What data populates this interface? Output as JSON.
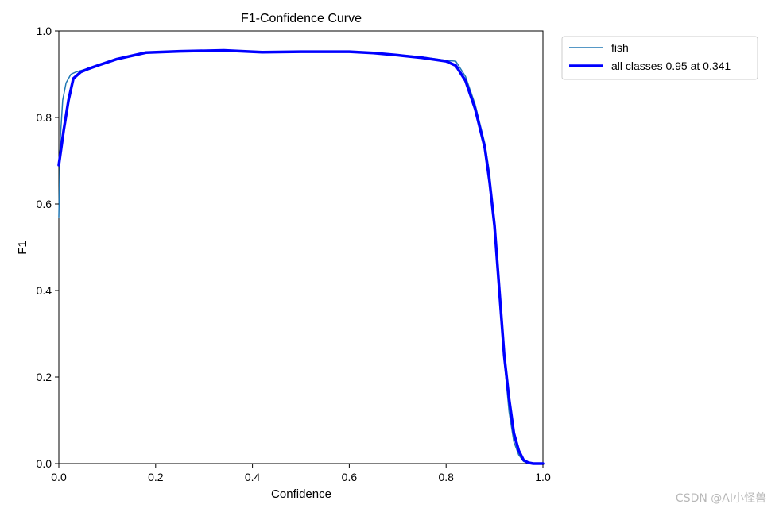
{
  "chart_data": {
    "type": "line",
    "title": "F1-Confidence Curve",
    "xlabel": "Confidence",
    "ylabel": "F1",
    "xlim": [
      0,
      1
    ],
    "ylim": [
      0,
      1
    ],
    "xticks": [
      "0.0",
      "0.2",
      "0.4",
      "0.6",
      "0.8",
      "1.0"
    ],
    "yticks": [
      "0.0",
      "0.2",
      "0.4",
      "0.6",
      "0.8",
      "1.0"
    ],
    "grid": false,
    "legend_position": "outside-top-right",
    "series": [
      {
        "name": "fish",
        "color": "#1f77b4",
        "x": [
          0.0,
          0.003,
          0.008,
          0.015,
          0.025,
          0.035,
          0.05,
          0.08,
          0.12,
          0.18,
          0.25,
          0.34,
          0.42,
          0.5,
          0.6,
          0.65,
          0.7,
          0.75,
          0.8,
          0.82,
          0.84,
          0.86,
          0.88,
          0.89,
          0.9,
          0.91,
          0.92,
          0.93,
          0.94,
          0.95,
          0.96,
          0.97,
          0.98,
          0.99,
          1.0
        ],
        "y": [
          0.57,
          0.75,
          0.84,
          0.88,
          0.9,
          0.905,
          0.91,
          0.92,
          0.935,
          0.95,
          0.952,
          0.955,
          0.951,
          0.952,
          0.952,
          0.95,
          0.945,
          0.94,
          0.932,
          0.93,
          0.895,
          0.83,
          0.74,
          0.67,
          0.54,
          0.38,
          0.24,
          0.12,
          0.05,
          0.02,
          0.005,
          0.001,
          0.0,
          0.0,
          0.0
        ]
      },
      {
        "name": "all classes 0.95 at 0.341",
        "color": "#0000ff",
        "x": [
          0.0,
          0.005,
          0.01,
          0.02,
          0.03,
          0.045,
          0.06,
          0.08,
          0.12,
          0.18,
          0.25,
          0.341,
          0.42,
          0.5,
          0.6,
          0.65,
          0.7,
          0.75,
          0.8,
          0.82,
          0.84,
          0.86,
          0.88,
          0.89,
          0.9,
          0.91,
          0.92,
          0.93,
          0.94,
          0.95,
          0.96,
          0.97,
          0.98,
          0.99,
          1.0
        ],
        "y": [
          0.69,
          0.73,
          0.77,
          0.84,
          0.89,
          0.905,
          0.912,
          0.92,
          0.935,
          0.95,
          0.953,
          0.955,
          0.951,
          0.952,
          0.952,
          0.949,
          0.944,
          0.938,
          0.93,
          0.92,
          0.885,
          0.82,
          0.73,
          0.65,
          0.55,
          0.4,
          0.25,
          0.15,
          0.07,
          0.03,
          0.008,
          0.002,
          0.0,
          0.0,
          0.0
        ]
      }
    ]
  },
  "watermark": "CSDN @AI小怪兽"
}
